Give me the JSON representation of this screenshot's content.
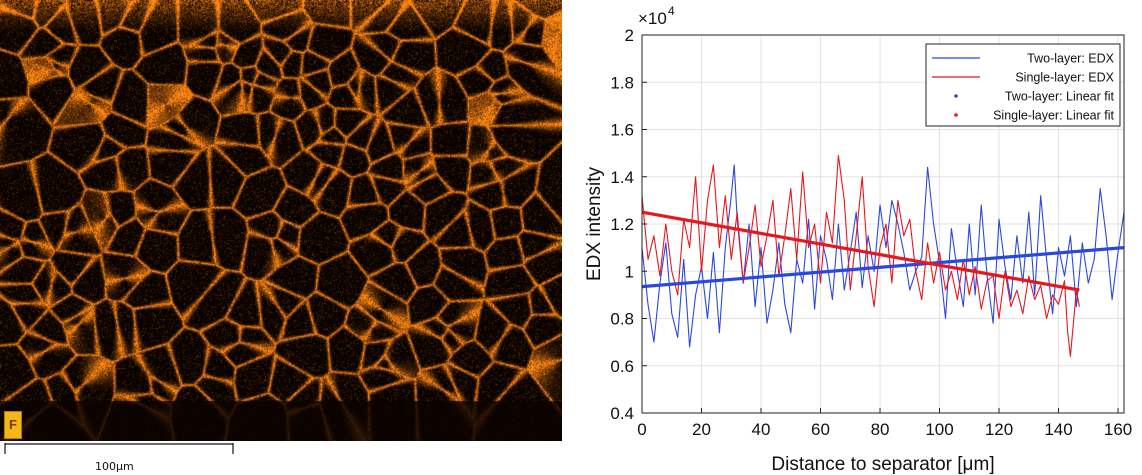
{
  "map": {
    "element_symbol": "F",
    "scale_bar_label": "100μm",
    "map_color": "#ff8a12"
  },
  "chart_data": {
    "type": "line",
    "xlabel": "Distance to separator [μm]",
    "ylabel": "EDX intensity",
    "y_multiplier_label": "×10",
    "y_multiplier_exponent": "4",
    "xlim": [
      0,
      162
    ],
    "ylim": [
      0.4,
      2.0
    ],
    "y_scale_factor": 10000,
    "x_ticks": [
      0,
      20,
      40,
      60,
      80,
      100,
      120,
      140,
      160
    ],
    "y_ticks": [
      0.4,
      0.6,
      0.8,
      1,
      1.2,
      1.4,
      1.6,
      1.8,
      2
    ],
    "y_tick_labels": [
      "0.4",
      "0.6",
      "0.8",
      "1",
      "1.2",
      "1.4",
      "1.6",
      "1.8",
      "2"
    ],
    "grid": true,
    "legend_position": "top-right",
    "series": [
      {
        "name": "Two-layer: EDX",
        "kind": "line",
        "color": "#2a48e0",
        "x": [
          0,
          2,
          4,
          6,
          8,
          10,
          12,
          14,
          16,
          18,
          20,
          22,
          24,
          26,
          28,
          30,
          31,
          32,
          34,
          36,
          38,
          40,
          42,
          44,
          46,
          48,
          50,
          52,
          54,
          56,
          58,
          60,
          62,
          64,
          66,
          68,
          70,
          72,
          74,
          76,
          78,
          80,
          82,
          84,
          86,
          88,
          90,
          92,
          94,
          96,
          98,
          100,
          102,
          104,
          106,
          108,
          110,
          112,
          114,
          116,
          118,
          120,
          122,
          124,
          126,
          128,
          130,
          132,
          134,
          136,
          138,
          140,
          142,
          144,
          146,
          148,
          150,
          152,
          154,
          156,
          158,
          160,
          162
        ],
        "y": [
          1.1,
          0.86,
          0.7,
          0.95,
          1.12,
          0.82,
          0.72,
          1.05,
          0.68,
          0.9,
          1.02,
          0.8,
          1.08,
          0.74,
          1.1,
          1.32,
          1.45,
          1.22,
          0.95,
          1.2,
          0.85,
          1.1,
          0.78,
          0.92,
          1.12,
          0.86,
          0.74,
          1.05,
          0.95,
          1.22,
          0.84,
          1.15,
          1.05,
          0.88,
          1.2,
          0.92,
          1.08,
          1.25,
          0.93,
          1.15,
          1.0,
          1.28,
          1.1,
          1.3,
          1.2,
          1.08,
          0.92,
          1.0,
          1.06,
          1.44,
          1.2,
          1.04,
          0.8,
          1.18,
          1.0,
          0.85,
          1.2,
          0.9,
          1.28,
          0.98,
          0.78,
          1.22,
          1.02,
          0.88,
          1.15,
          0.95,
          1.25,
          0.9,
          1.32,
          1.05,
          0.82,
          1.1,
          0.98,
          1.15,
          0.85,
          1.12,
          0.95,
          1.05,
          1.35,
          1.15,
          0.88,
          1.08,
          1.25
        ]
      },
      {
        "name": "Single-layer: EDX",
        "kind": "line",
        "color": "#e8161d",
        "x": [
          0,
          2,
          4,
          6,
          8,
          10,
          12,
          14,
          16,
          18,
          20,
          22,
          24,
          26,
          28,
          30,
          32,
          34,
          36,
          38,
          40,
          42,
          44,
          46,
          48,
          50,
          52,
          54,
          56,
          58,
          60,
          62,
          64,
          66,
          68,
          70,
          72,
          74,
          76,
          78,
          80,
          82,
          84,
          86,
          88,
          90,
          92,
          94,
          96,
          98,
          100,
          102,
          104,
          106,
          108,
          110,
          112,
          114,
          116,
          118,
          120,
          122,
          124,
          126,
          128,
          130,
          132,
          134,
          136,
          138,
          140,
          142,
          143,
          144,
          145,
          146,
          147
        ],
        "y": [
          1.32,
          1.05,
          1.15,
          0.98,
          1.2,
          1.0,
          0.9,
          1.22,
          1.1,
          1.4,
          1.0,
          1.3,
          1.45,
          1.1,
          1.32,
          1.05,
          1.25,
          0.95,
          1.1,
          1.28,
          1.02,
          1.15,
          1.3,
          0.98,
          1.15,
          1.35,
          1.05,
          1.42,
          1.1,
          1.2,
          0.95,
          1.25,
          1.12,
          1.49,
          1.3,
          0.92,
          1.15,
          1.4,
          1.02,
          0.85,
          1.1,
          1.2,
          0.95,
          1.3,
          1.15,
          1.22,
          1.0,
          0.88,
          1.12,
          0.95,
          1.08,
          0.92,
          1.0,
          0.88,
          1.05,
          0.9,
          1.02,
          0.84,
          0.96,
          0.98,
          0.8,
          1.0,
          0.85,
          0.92,
          0.82,
          0.98,
          0.88,
          0.94,
          0.8,
          0.9,
          0.86,
          0.96,
          0.75,
          0.64,
          0.78,
          0.92,
          0.85
        ]
      },
      {
        "name": "Two-layer: Linear fit",
        "kind": "fit",
        "color": "#2a48e0",
        "x": [
          0,
          162
        ],
        "y": [
          0.935,
          1.1
        ]
      },
      {
        "name": "Single-layer: Linear fit",
        "kind": "fit",
        "color": "#e8161d",
        "x": [
          0,
          147
        ],
        "y": [
          1.25,
          0.92
        ]
      }
    ]
  }
}
